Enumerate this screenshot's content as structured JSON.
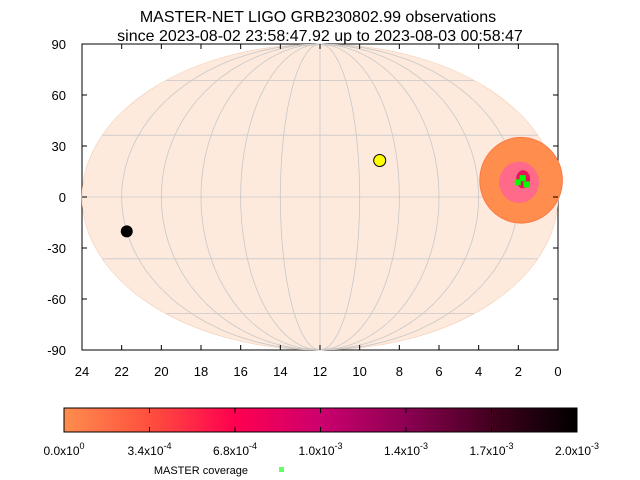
{
  "chart_data": {
    "type": "sky-map",
    "projection": "mollweide",
    "title_line1": "MASTER-NET LIGO GRB230802.99 observations",
    "title_line2": "since 2023-08-02 23:58:47.92 up to 2023-08-03 00:58:47",
    "xlim": [
      24,
      0
    ],
    "ylim": [
      -90,
      90
    ],
    "x_ticks": [
      "24",
      "22",
      "20",
      "18",
      "16",
      "14",
      "12",
      "10",
      "8",
      "6",
      "4",
      "2",
      "0"
    ],
    "y_ticks": [
      "90",
      "60",
      "30",
      "0",
      "-30",
      "-60",
      "-90"
    ],
    "grid": true,
    "sun": {
      "ra_h": 8.9,
      "dec": 17.5
    },
    "moon": {
      "ra_h": 22.0,
      "dec": -16.5
    },
    "localization_region": {
      "center_ra_h": 1.8,
      "center_dec": 8,
      "outer_radius_deg": 18,
      "inner_radius_deg": 9
    },
    "coverage_points": [
      {
        "ra_h": 1.98,
        "dec": 7
      },
      {
        "ra_h": 1.7,
        "dec": 9
      },
      {
        "ra_h": 1.55,
        "dec": 6
      }
    ],
    "colorbar": {
      "min": 0.0,
      "max": 0.002,
      "tick_labels": [
        "0.0x10",
        "3.4x10",
        "6.8x10",
        "1.0x10",
        "1.4x10",
        "1.7x10",
        "2.0x10"
      ],
      "tick_exponents": [
        "0",
        "-4",
        "-4",
        "-3",
        "-3",
        "-3",
        "-3"
      ],
      "colors": [
        "#fe8d4e",
        "#ff4f3d",
        "#ff0050",
        "#cc006e",
        "#8c0052",
        "#42001e",
        "#000000"
      ]
    },
    "legend": {
      "label": "MASTER coverage",
      "position": "bottom-center",
      "marker_color": "#66ff66"
    },
    "colors": {
      "sky_fill": "#fdeadd",
      "region_fill": "#fe8d4e",
      "sun": "#ffff00",
      "moon": "#000000",
      "coverage": "#00ff00",
      "grid": "#c8c8c8"
    }
  }
}
